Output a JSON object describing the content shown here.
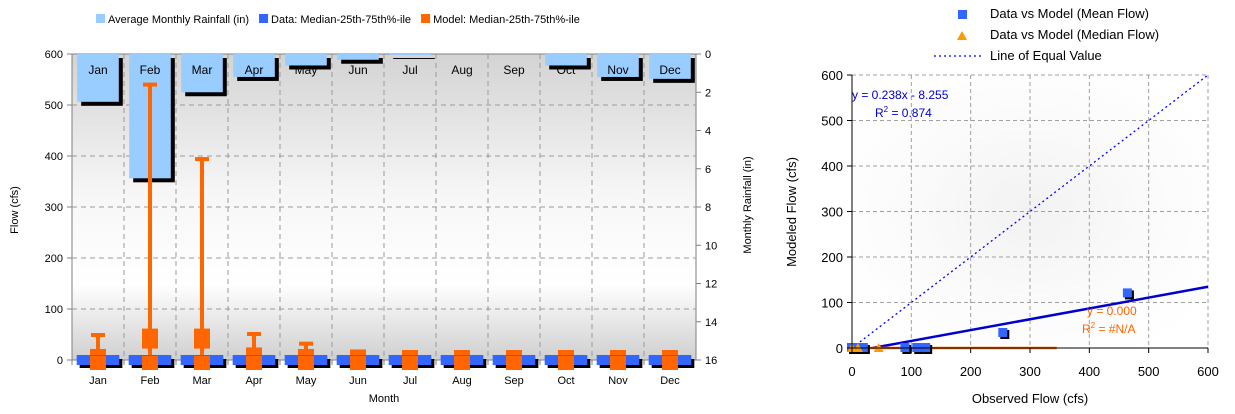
{
  "chart_data": [
    {
      "type": "bar",
      "title": "",
      "xlabel": "Month",
      "ylabel": "Flow (cfs)",
      "y2label": "Monthly Rainfall (in)",
      "ylim": [
        0,
        600
      ],
      "y2lim": [
        0,
        16
      ],
      "y2_inverted": true,
      "grid": true,
      "legend_position": "top",
      "categories": [
        "Jan",
        "Feb",
        "Mar",
        "Apr",
        "May",
        "Jun",
        "Jul",
        "Aug",
        "Sep",
        "Oct",
        "Nov",
        "Dec"
      ],
      "yticks": [
        0,
        100,
        200,
        300,
        400,
        500,
        600
      ],
      "y2ticks": [
        0,
        2,
        4,
        6,
        8,
        10,
        12,
        14,
        16
      ],
      "series": [
        {
          "name": "Average Monthly Rainfall (in)",
          "axis": "y2",
          "color": "#99CCFF",
          "values": [
            2.5,
            6.5,
            2.0,
            1.2,
            0.6,
            0.3,
            0.05,
            0.0,
            0.0,
            0.6,
            1.2,
            1.3
          ]
        },
        {
          "name": "Data: Median-25th-75th%-ile",
          "axis": "y",
          "color": "#3366FF",
          "values": [
            0,
            0,
            0,
            0,
            0,
            0,
            0,
            0,
            0,
            0,
            0,
            0
          ]
        },
        {
          "name": "Model: Median-25th-75th%-ile",
          "axis": "y",
          "color": "#FF6600",
          "median": [
            2,
            42,
            42,
            5,
            2,
            1,
            0,
            0,
            0,
            0,
            0,
            0
          ],
          "high": [
            49,
            540,
            394,
            51,
            32,
            1,
            0,
            0,
            0,
            0,
            0,
            0
          ],
          "low": [
            0,
            0,
            0,
            0,
            0,
            0,
            0,
            0,
            0,
            0,
            0,
            0
          ]
        }
      ]
    },
    {
      "type": "scatter",
      "title": "",
      "xlabel": "Observed Flow (cfs)",
      "ylabel": "Modeled Flow (cfs)",
      "xlim": [
        0,
        600
      ],
      "ylim": [
        0,
        600
      ],
      "xticks": [
        0,
        100,
        200,
        300,
        400,
        500,
        600
      ],
      "yticks": [
        0,
        100,
        200,
        300,
        400,
        500,
        600
      ],
      "grid": true,
      "legend_position": "top",
      "series": [
        {
          "name": "Data vs Model (Mean Flow)",
          "color": "#3366FF",
          "marker": "square",
          "x": [
            0,
            5,
            10,
            20,
            90,
            110,
            125,
            255,
            465
          ],
          "y": [
            0,
            0,
            0,
            0,
            0,
            0,
            0,
            33,
            120
          ],
          "trendline_label": "y = 0.238x - 8.255",
          "r2_label": "R",
          "r2_exp": "2",
          "r2_value": " = 0.874",
          "trend_color": "#0000CC",
          "slope": 0.238,
          "intercept": -8.255
        },
        {
          "name": "Data vs Model (Median Flow)",
          "color": "#FF9900",
          "marker": "triangle",
          "x": [
            0,
            10,
            45
          ],
          "y": [
            0,
            0,
            0
          ],
          "trendline_label": "y = 0.000",
          "r2_label": "R",
          "r2_exp": "2",
          "r2_value": " = #N/A",
          "trend_color": "#FF6600",
          "trend_x_end": 345
        },
        {
          "name": "Line of Equal Value",
          "color": "#0000FF",
          "style": "dotted",
          "x": [
            0,
            600
          ],
          "y": [
            0,
            600
          ]
        }
      ]
    }
  ]
}
